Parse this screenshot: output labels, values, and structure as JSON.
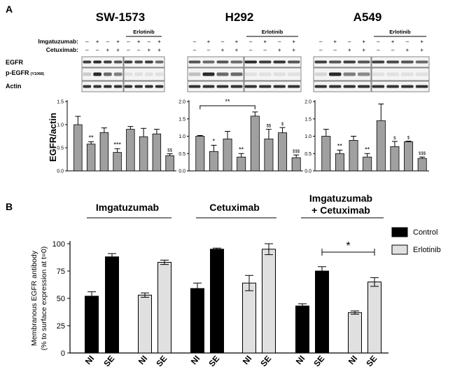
{
  "panel_a": {
    "label": "A",
    "cell_lines": [
      "SW-1573",
      "H292",
      "A549"
    ],
    "row_labels": {
      "imgatuzumab": "Imgatuzumab:",
      "cetuximab": "Cetuximab:"
    },
    "treatment_imgatuzumab": [
      "–",
      "+",
      "–",
      "+"
    ],
    "treatment_cetuximab": [
      "–",
      "–",
      "+",
      "+"
    ],
    "erlotinib_label": "Erlotinib",
    "blot_labels": {
      "egfr": "EGFR",
      "p_egfr": "p-EGFR",
      "p_egfr_sub": "(Y1068)",
      "actin": "Actin"
    },
    "ylabel": "EGFR/actin"
  },
  "panel_b": {
    "label": "B",
    "group_headers": {
      "imgatuzumab": "Imgatuzumab",
      "cetuximab": "Cetuximab",
      "combo_line1": "Imgatuzumab",
      "combo_line2": "+ Cetuximab"
    },
    "ylabel_line1": "Membranous EGFR antibody",
    "ylabel_line2": "(% to surface expression at t=0)",
    "legend": {
      "control": "Control",
      "erlotinib": "Erlotinib"
    },
    "significance": "*",
    "colors": {
      "control": "#000000",
      "erlotinib": "#e0e0e0"
    }
  },
  "chart_data": [
    {
      "type": "bar",
      "title": "SW-1573",
      "ylabel": "EGFR/actin",
      "ylim": [
        0,
        1.5
      ],
      "yticks": [
        "0.0",
        "0.5",
        "1.0",
        "1.5"
      ],
      "values": [
        1.0,
        0.58,
        0.83,
        0.4,
        0.9,
        0.74,
        0.8,
        0.33
      ],
      "errors": [
        0.18,
        0.05,
        0.1,
        0.08,
        0.06,
        0.18,
        0.1,
        0.04
      ],
      "annotations": [
        "",
        "**",
        "",
        "***",
        "",
        "",
        "",
        "$$"
      ],
      "bar_color": "#a0a0a0"
    },
    {
      "type": "bar",
      "title": "H292",
      "ylabel": "",
      "ylim": [
        0,
        2.0
      ],
      "yticks": [
        "0.0",
        "0.5",
        "1.0",
        "1.5",
        "2.0"
      ],
      "values": [
        1.0,
        0.56,
        0.92,
        0.4,
        1.58,
        0.92,
        1.1,
        0.38
      ],
      "errors": [
        0.02,
        0.18,
        0.22,
        0.1,
        0.12,
        0.28,
        0.15,
        0.08
      ],
      "annotations": [
        "",
        "*",
        "",
        "**",
        "",
        "$$",
        "$",
        "$$$"
      ],
      "bracket": {
        "from": 0,
        "to": 4,
        "label": "**"
      },
      "bar_color": "#a0a0a0"
    },
    {
      "type": "bar",
      "title": "A549",
      "ylabel": "",
      "ylim": [
        0,
        2.0
      ],
      "yticks": [
        "0.0",
        "0.5",
        "1.0",
        "1.5",
        "2.0"
      ],
      "values": [
        1.0,
        0.5,
        0.88,
        0.4,
        1.45,
        0.7,
        0.84,
        0.36
      ],
      "errors": [
        0.2,
        0.1,
        0.12,
        0.1,
        0.48,
        0.15,
        0.02,
        0.04
      ],
      "annotations": [
        "",
        "**",
        "",
        "**",
        "",
        "$",
        "$",
        "$$$"
      ],
      "bar_color": "#a0a0a0"
    },
    {
      "type": "bar",
      "title": "",
      "ylabel": "Membranous EGFR antibody (% to surface expression at t=0)",
      "ylim": [
        0,
        100
      ],
      "yticks": [
        "0",
        "25",
        "50",
        "75",
        "100"
      ],
      "bars": [
        {
          "label": "NI",
          "value": 52,
          "error": 4,
          "series": "Control"
        },
        {
          "label": "SE",
          "value": 88,
          "error": 3,
          "series": "Control"
        },
        {
          "label": "NI",
          "value": 53,
          "error": 2,
          "series": "Erlotinib"
        },
        {
          "label": "SE",
          "value": 83,
          "error": 2,
          "series": "Erlotinib"
        },
        {
          "label": "NI",
          "value": 59,
          "error": 5,
          "series": "Control"
        },
        {
          "label": "SE",
          "value": 95,
          "error": 1,
          "series": "Control"
        },
        {
          "label": "NI",
          "value": 64,
          "error": 7,
          "series": "Erlotinib"
        },
        {
          "label": "SE",
          "value": 95,
          "error": 5,
          "series": "Erlotinib"
        },
        {
          "label": "NI",
          "value": 43,
          "error": 2,
          "series": "Control"
        },
        {
          "label": "SE",
          "value": 75,
          "error": 4,
          "series": "Control"
        },
        {
          "label": "NI",
          "value": 37,
          "error": 1.5,
          "series": "Erlotinib"
        },
        {
          "label": "SE",
          "value": 65,
          "error": 4,
          "series": "Erlotinib"
        }
      ],
      "bracket": {
        "from": 9,
        "to": 11,
        "label": "*"
      },
      "legend_position": "top-right"
    }
  ]
}
